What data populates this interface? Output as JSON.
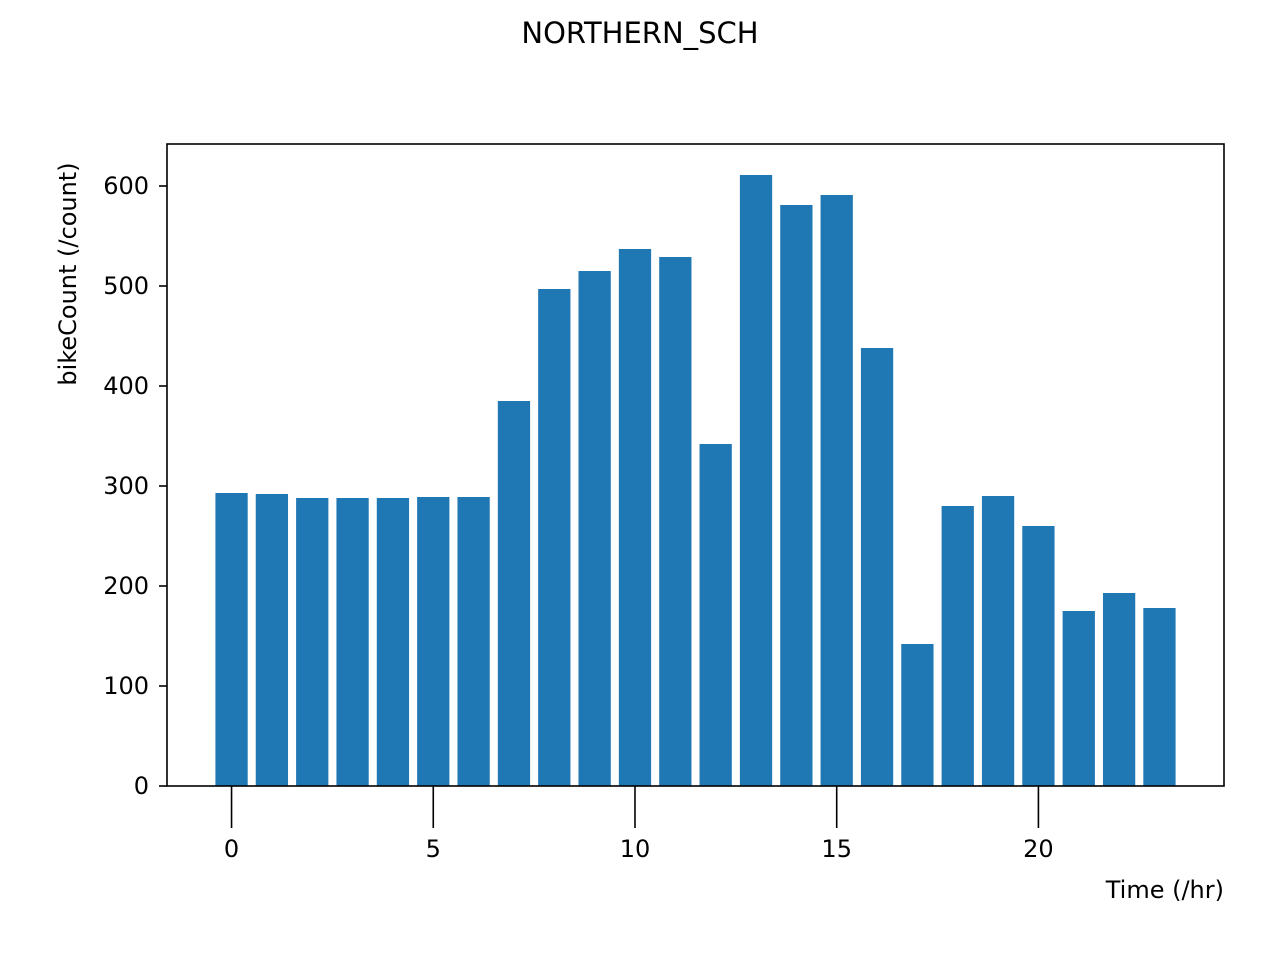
{
  "chart_data": {
    "type": "bar",
    "title": "NORTHERN_SCH",
    "xlabel": "Time (/hr)",
    "ylabel": "bikeCount (/count)",
    "x": [
      0,
      1,
      2,
      3,
      4,
      5,
      6,
      7,
      8,
      9,
      10,
      11,
      12,
      13,
      14,
      15,
      16,
      17,
      18,
      19,
      20,
      21,
      22,
      23
    ],
    "values": [
      293,
      292,
      288,
      288,
      288,
      289,
      289,
      385,
      497,
      515,
      537,
      529,
      342,
      611,
      581,
      591,
      438,
      142,
      280,
      290,
      260,
      175,
      193,
      178
    ],
    "xticks": [
      0,
      5,
      10,
      15,
      20
    ],
    "yticks": [
      0,
      100,
      200,
      300,
      400,
      500,
      600
    ],
    "xlim": [
      -1.6,
      24.6
    ],
    "ylim": [
      0,
      642
    ],
    "bar_color": "#1f77b4",
    "grid": false,
    "legend": false
  }
}
